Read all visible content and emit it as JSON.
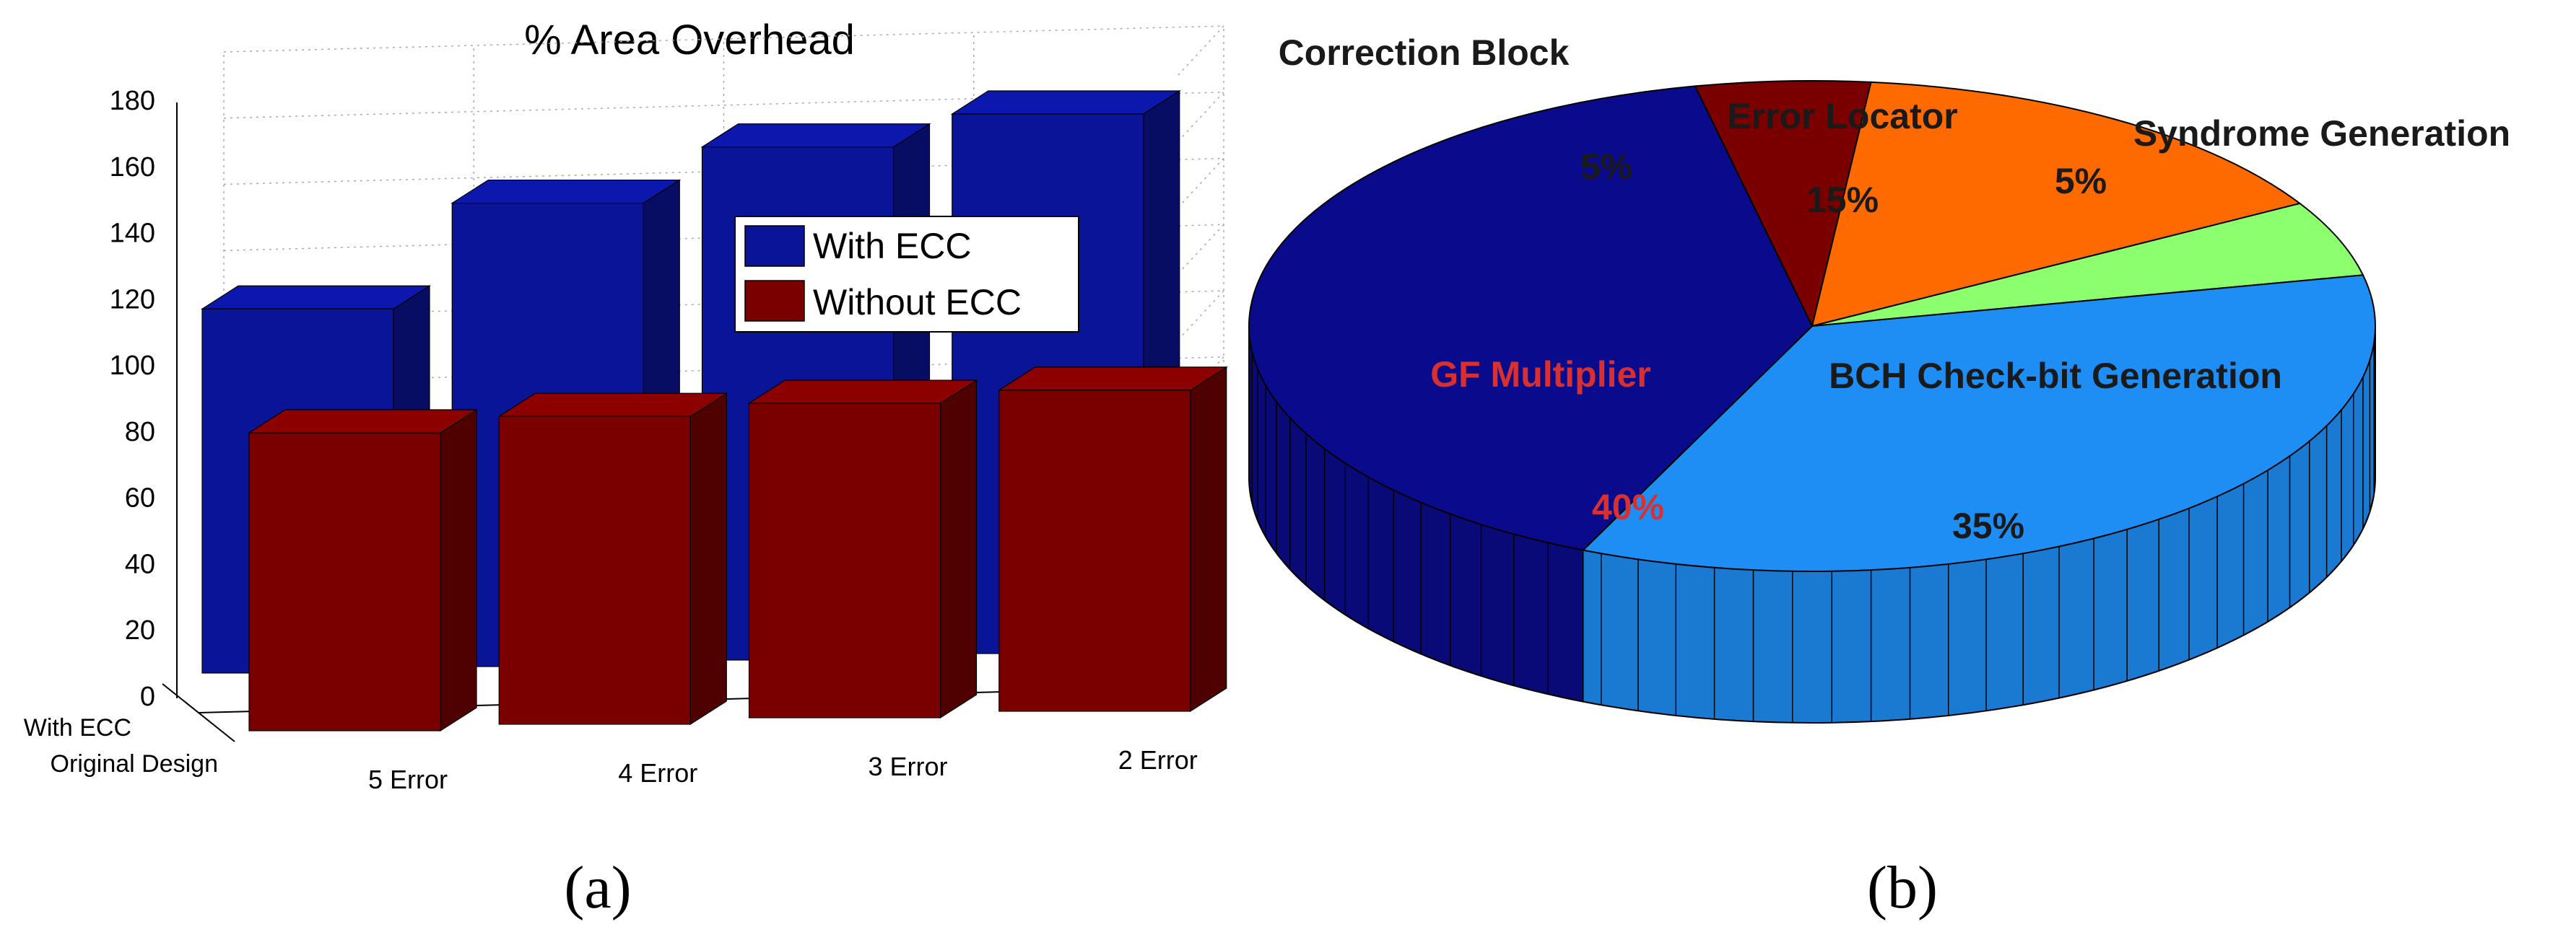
{
  "chart_data": [
    {
      "type": "bar",
      "title": "% Area Overhead",
      "categories": [
        "5 Error",
        "4 Error",
        "3 Error",
        "2 Error"
      ],
      "depth_labels": [
        "With ECC",
        "Original Design"
      ],
      "series": [
        {
          "name": "With ECC",
          "color": "#0a1496",
          "values": [
            110,
            140,
            155,
            163
          ]
        },
        {
          "name": "Without ECC",
          "color": "#7a0000",
          "values": [
            90,
            93,
            95,
            97
          ]
        }
      ],
      "ylim": [
        0,
        180
      ],
      "yticks": [
        0,
        20,
        40,
        60,
        80,
        100,
        120,
        140,
        160,
        180
      ],
      "grid": true,
      "legend": "center-right",
      "caption": "(a)"
    },
    {
      "type": "pie",
      "slices": [
        {
          "label": "Correction Block",
          "pct_label": "5%",
          "value": 5,
          "color": "#7a0000",
          "label_color": "#1a1a1a"
        },
        {
          "label": "Error Locator",
          "pct_label": "15%",
          "value": 15,
          "color": "#ff6a00",
          "label_color": "#1a1a1a"
        },
        {
          "label": "Syndrome Generation",
          "pct_label": "5%",
          "value": 5,
          "color": "#8cff6e",
          "label_color": "#1a1a1a"
        },
        {
          "label": "BCH Check-bit Generation",
          "pct_label": "35%",
          "value": 35,
          "color": "#1e8ef5",
          "label_color": "#1a1a1a"
        },
        {
          "label": "GF Multiplier",
          "pct_label": "40%",
          "value": 40,
          "color": "#0a0a8c",
          "label_color": "#d83030"
        }
      ],
      "caption": "(b)"
    }
  ]
}
